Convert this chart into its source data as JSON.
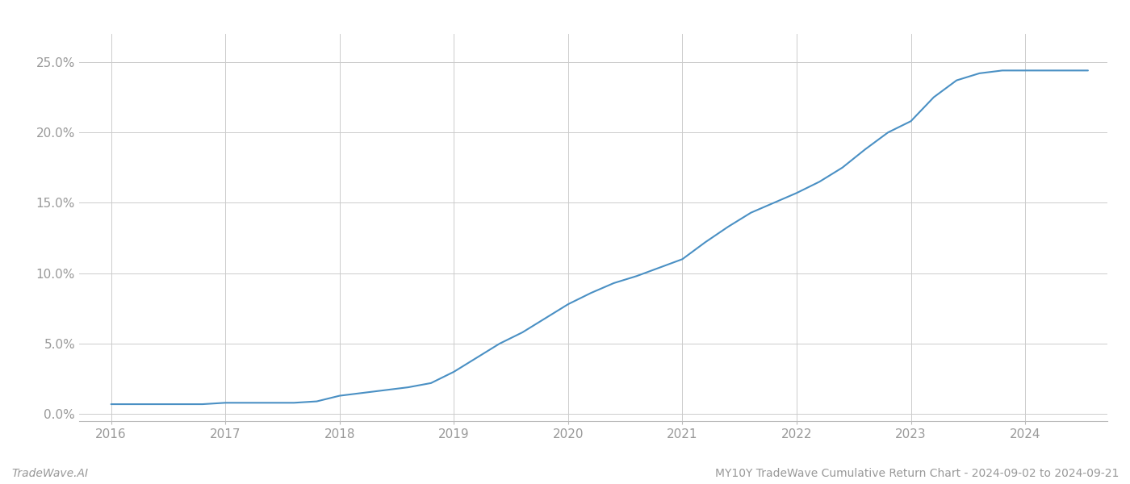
{
  "title": "MY10Y TradeWave Cumulative Return Chart - 2024-09-02 to 2024-09-21",
  "footer_left": "TradeWave.AI",
  "footer_right": "MY10Y TradeWave Cumulative Return Chart - 2024-09-02 to 2024-09-21",
  "line_color": "#4a90c4",
  "background_color": "#ffffff",
  "grid_color": "#cccccc",
  "x_values": [
    2016.0,
    2016.2,
    2016.4,
    2016.6,
    2016.8,
    2017.0,
    2017.2,
    2017.4,
    2017.6,
    2017.8,
    2018.0,
    2018.2,
    2018.4,
    2018.6,
    2018.8,
    2019.0,
    2019.2,
    2019.4,
    2019.6,
    2019.8,
    2020.0,
    2020.2,
    2020.4,
    2020.6,
    2020.8,
    2021.0,
    2021.2,
    2021.4,
    2021.6,
    2021.8,
    2022.0,
    2022.2,
    2022.4,
    2022.6,
    2022.8,
    2023.0,
    2023.2,
    2023.4,
    2023.6,
    2023.8,
    2024.0,
    2024.2,
    2024.55
  ],
  "y_values": [
    0.007,
    0.007,
    0.007,
    0.007,
    0.007,
    0.008,
    0.008,
    0.008,
    0.008,
    0.009,
    0.013,
    0.015,
    0.017,
    0.019,
    0.022,
    0.03,
    0.04,
    0.05,
    0.058,
    0.068,
    0.078,
    0.086,
    0.093,
    0.098,
    0.104,
    0.11,
    0.122,
    0.133,
    0.143,
    0.15,
    0.157,
    0.165,
    0.175,
    0.188,
    0.2,
    0.208,
    0.225,
    0.237,
    0.242,
    0.244,
    0.244,
    0.244,
    0.244
  ],
  "xlim": [
    2015.72,
    2024.72
  ],
  "ylim": [
    -0.005,
    0.27
  ],
  "xticks": [
    2016,
    2017,
    2018,
    2019,
    2020,
    2021,
    2022,
    2023,
    2024
  ],
  "yticks": [
    0.0,
    0.05,
    0.1,
    0.15,
    0.2,
    0.25
  ],
  "ytick_labels": [
    "0.0%",
    "5.0%",
    "10.0%",
    "15.0%",
    "20.0%",
    "25.0%"
  ],
  "tick_color": "#999999",
  "axis_color": "#bbbbbb",
  "line_width": 1.5,
  "tick_fontsize": 11
}
